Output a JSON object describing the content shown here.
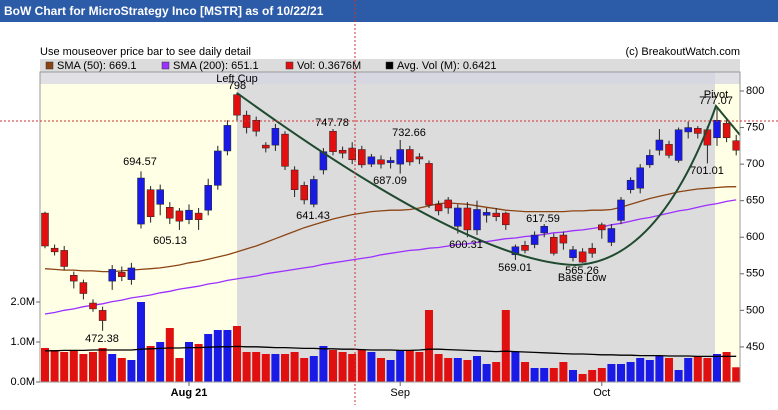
{
  "chart_data": {
    "type": "candlestick",
    "title": "BoW Chart for MicroStrategy Inco [MSTR] as of 10/22/21",
    "subtitle": "Use mouseover price bar to see daily detail",
    "credit": "(c) BreakoutWatch.com",
    "legend": [
      "SMA (50): 669.1",
      "SMA (200): 651.1",
      "Vol: 0.3676M",
      "Avg. Vol (M): 0.6421"
    ],
    "legend_colors": [
      "#8b4513",
      "#9b30ff",
      "#e01010",
      "#000000"
    ],
    "up_color": "#1a1ae6",
    "down_color": "#e01010",
    "categories": [
      null,
      null,
      null,
      null,
      null,
      null,
      null,
      null,
      null,
      null,
      null,
      null,
      null,
      null,
      null,
      "Aug 21",
      null,
      null,
      null,
      null,
      null,
      null,
      null,
      null,
      null,
      null,
      null,
      null,
      null,
      null,
      null,
      null,
      null,
      null,
      null,
      null,
      null,
      "Sep",
      null,
      null,
      null,
      null,
      null,
      null,
      null,
      null,
      null,
      null,
      null,
      null,
      null,
      null,
      null,
      null,
      null,
      null,
      null,
      null,
      "Oct",
      null,
      null,
      null,
      null,
      null,
      null,
      null,
      null,
      null,
      null,
      null,
      null,
      null,
      null
    ],
    "open": [
      633,
      585,
      582,
      548,
      538,
      510,
      500,
      540,
      552,
      542,
      618,
      665,
      645,
      641,
      636,
      624,
      633,
      637,
      671,
      718,
      795,
      767,
      760,
      726,
      726,
      741,
      692,
      671,
      645,
      692,
      745,
      719,
      722,
      720,
      700,
      706,
      702,
      700,
      720,
      710,
      701,
      645,
      651,
      615,
      640,
      610,
      630,
      633,
      633,
      576,
      589,
      590,
      606,
      600,
      603,
      572,
      580,
      585,
      617,
      593,
      623,
      665,
      667,
      699,
      719,
      727,
      705,
      744,
      749,
      747,
      736,
      756,
      732
    ],
    "high": [
      635,
      590,
      588,
      553,
      542,
      515,
      505,
      562,
      560,
      565,
      690,
      670,
      672,
      648,
      640,
      645,
      640,
      680,
      725,
      760,
      798,
      773,
      765,
      730,
      755,
      745,
      697,
      676,
      684,
      722,
      748,
      724,
      730,
      725,
      714,
      712,
      710,
      733,
      725,
      715,
      705,
      650,
      655,
      645,
      648,
      650,
      640,
      640,
      635,
      590,
      595,
      608,
      618,
      605,
      608,
      588,
      585,
      592,
      620,
      618,
      655,
      682,
      700,
      720,
      748,
      732,
      750,
      758,
      752,
      752,
      777,
      762,
      740
    ],
    "low": [
      585,
      575,
      555,
      530,
      515,
      498,
      472,
      528,
      540,
      535,
      612,
      620,
      630,
      618,
      610,
      618,
      610,
      630,
      665,
      712,
      760,
      742,
      738,
      716,
      718,
      692,
      655,
      645,
      641,
      686,
      712,
      708,
      700,
      695,
      696,
      694,
      694,
      687,
      698,
      700,
      640,
      630,
      632,
      605,
      600,
      603,
      620,
      622,
      610,
      569,
      578,
      585,
      600,
      575,
      583,
      567,
      565,
      572,
      598,
      588,
      618,
      660,
      660,
      695,
      712,
      708,
      702,
      735,
      735,
      701,
      725,
      730,
      712
    ],
    "close": [
      588,
      580,
      560,
      540,
      523,
      502,
      486,
      556,
      546,
      558,
      681,
      628,
      665,
      626,
      622,
      637,
      624,
      671,
      718,
      753,
      767,
      750,
      745,
      722,
      749,
      697,
      665,
      651,
      679,
      717,
      717,
      715,
      706,
      699,
      710,
      700,
      705,
      720,
      703,
      707,
      644,
      636,
      640,
      640,
      610,
      638,
      634,
      628,
      617,
      587,
      582,
      603,
      615,
      578,
      592,
      583,
      566,
      578,
      610,
      612,
      651,
      678,
      695,
      712,
      733,
      712,
      747,
      750,
      742,
      726,
      760,
      736,
      719
    ],
    "volume": [
      0.85,
      0.8,
      0.75,
      0.8,
      0.7,
      0.75,
      0.85,
      0.7,
      0.6,
      0.55,
      2.0,
      0.9,
      1.0,
      1.35,
      0.6,
      1.0,
      0.95,
      1.2,
      1.3,
      1.3,
      1.4,
      0.75,
      0.75,
      0.7,
      0.7,
      0.7,
      0.75,
      0.6,
      0.65,
      0.9,
      0.8,
      0.75,
      0.7,
      0.8,
      0.75,
      0.6,
      0.55,
      0.8,
      0.8,
      0.75,
      1.8,
      0.7,
      0.6,
      0.6,
      0.55,
      0.65,
      0.45,
      0.5,
      1.8,
      0.75,
      0.5,
      0.35,
      0.35,
      0.35,
      0.5,
      0.3,
      0.2,
      0.3,
      0.35,
      0.45,
      0.45,
      0.5,
      0.6,
      0.55,
      0.65,
      0.6,
      0.3,
      0.6,
      0.65,
      0.6,
      0.7,
      0.75,
      0.3676
    ],
    "sma50": [
      557,
      556,
      555,
      555,
      554,
      554,
      553,
      553,
      554,
      555,
      556,
      557,
      558,
      560,
      562,
      565,
      567,
      570,
      573,
      576,
      580,
      584,
      588,
      593,
      598,
      603,
      608,
      613,
      617,
      621,
      625,
      628,
      631,
      633,
      635,
      636,
      637,
      637,
      638,
      640,
      643,
      646,
      647,
      646,
      645,
      643,
      641,
      639,
      637,
      636,
      635,
      635,
      635,
      635,
      635,
      636,
      636,
      637,
      637,
      638,
      641,
      645,
      649,
      653,
      656,
      659,
      662,
      664,
      666,
      667,
      668,
      669,
      669.1
    ],
    "sma200": [
      495,
      497,
      500,
      502,
      505,
      507,
      509,
      512,
      514,
      517,
      519,
      521,
      524,
      526,
      529,
      531,
      533,
      536,
      538,
      541,
      543,
      545,
      547,
      550,
      552,
      554,
      556,
      558,
      560,
      563,
      565,
      567,
      569,
      571,
      573,
      576,
      578,
      580,
      582,
      583,
      585,
      586,
      588,
      590,
      591,
      593,
      594,
      596,
      598,
      599,
      601,
      602,
      604,
      606,
      607,
      609,
      610,
      612,
      614,
      617,
      619,
      622,
      625,
      627,
      630,
      633,
      636,
      638,
      641,
      644,
      646,
      649,
      651.1
    ],
    "avg_volume": [
      0.78,
      0.78,
      0.79,
      0.79,
      0.79,
      0.8,
      0.8,
      0.8,
      0.8,
      0.8,
      0.82,
      0.83,
      0.84,
      0.85,
      0.85,
      0.86,
      0.86,
      0.87,
      0.88,
      0.88,
      0.89,
      0.88,
      0.88,
      0.87,
      0.86,
      0.86,
      0.85,
      0.84,
      0.84,
      0.83,
      0.83,
      0.82,
      0.82,
      0.81,
      0.8,
      0.8,
      0.8,
      0.79,
      0.79,
      0.8,
      0.82,
      0.82,
      0.81,
      0.8,
      0.79,
      0.78,
      0.77,
      0.76,
      0.77,
      0.76,
      0.75,
      0.74,
      0.73,
      0.72,
      0.71,
      0.7,
      0.7,
      0.69,
      0.68,
      0.68,
      0.67,
      0.67,
      0.66,
      0.66,
      0.66,
      0.65,
      0.65,
      0.65,
      0.64,
      0.64,
      0.64,
      0.64,
      0.6421
    ],
    "ylim": [
      402,
      826
    ],
    "yticks": [
      450,
      500,
      550,
      600,
      650,
      700,
      750,
      800
    ],
    "y2lim": [
      0,
      7.75
    ],
    "y2ticks": [
      {
        "value": 0,
        "label": "0.0M"
      },
      {
        "value": 1,
        "label": "1.0M"
      },
      {
        "value": 2,
        "label": "2.0M"
      }
    ],
    "annotations": [
      "798",
      "Left Cup",
      "747.78",
      "694.57",
      "605.13",
      "641.43",
      "732.66",
      "687.09",
      "600.31",
      "617.59",
      "569.01",
      "565.26",
      "Base Low",
      "Pivot",
      "777.07",
      "701.01",
      "472.38"
    ]
  }
}
